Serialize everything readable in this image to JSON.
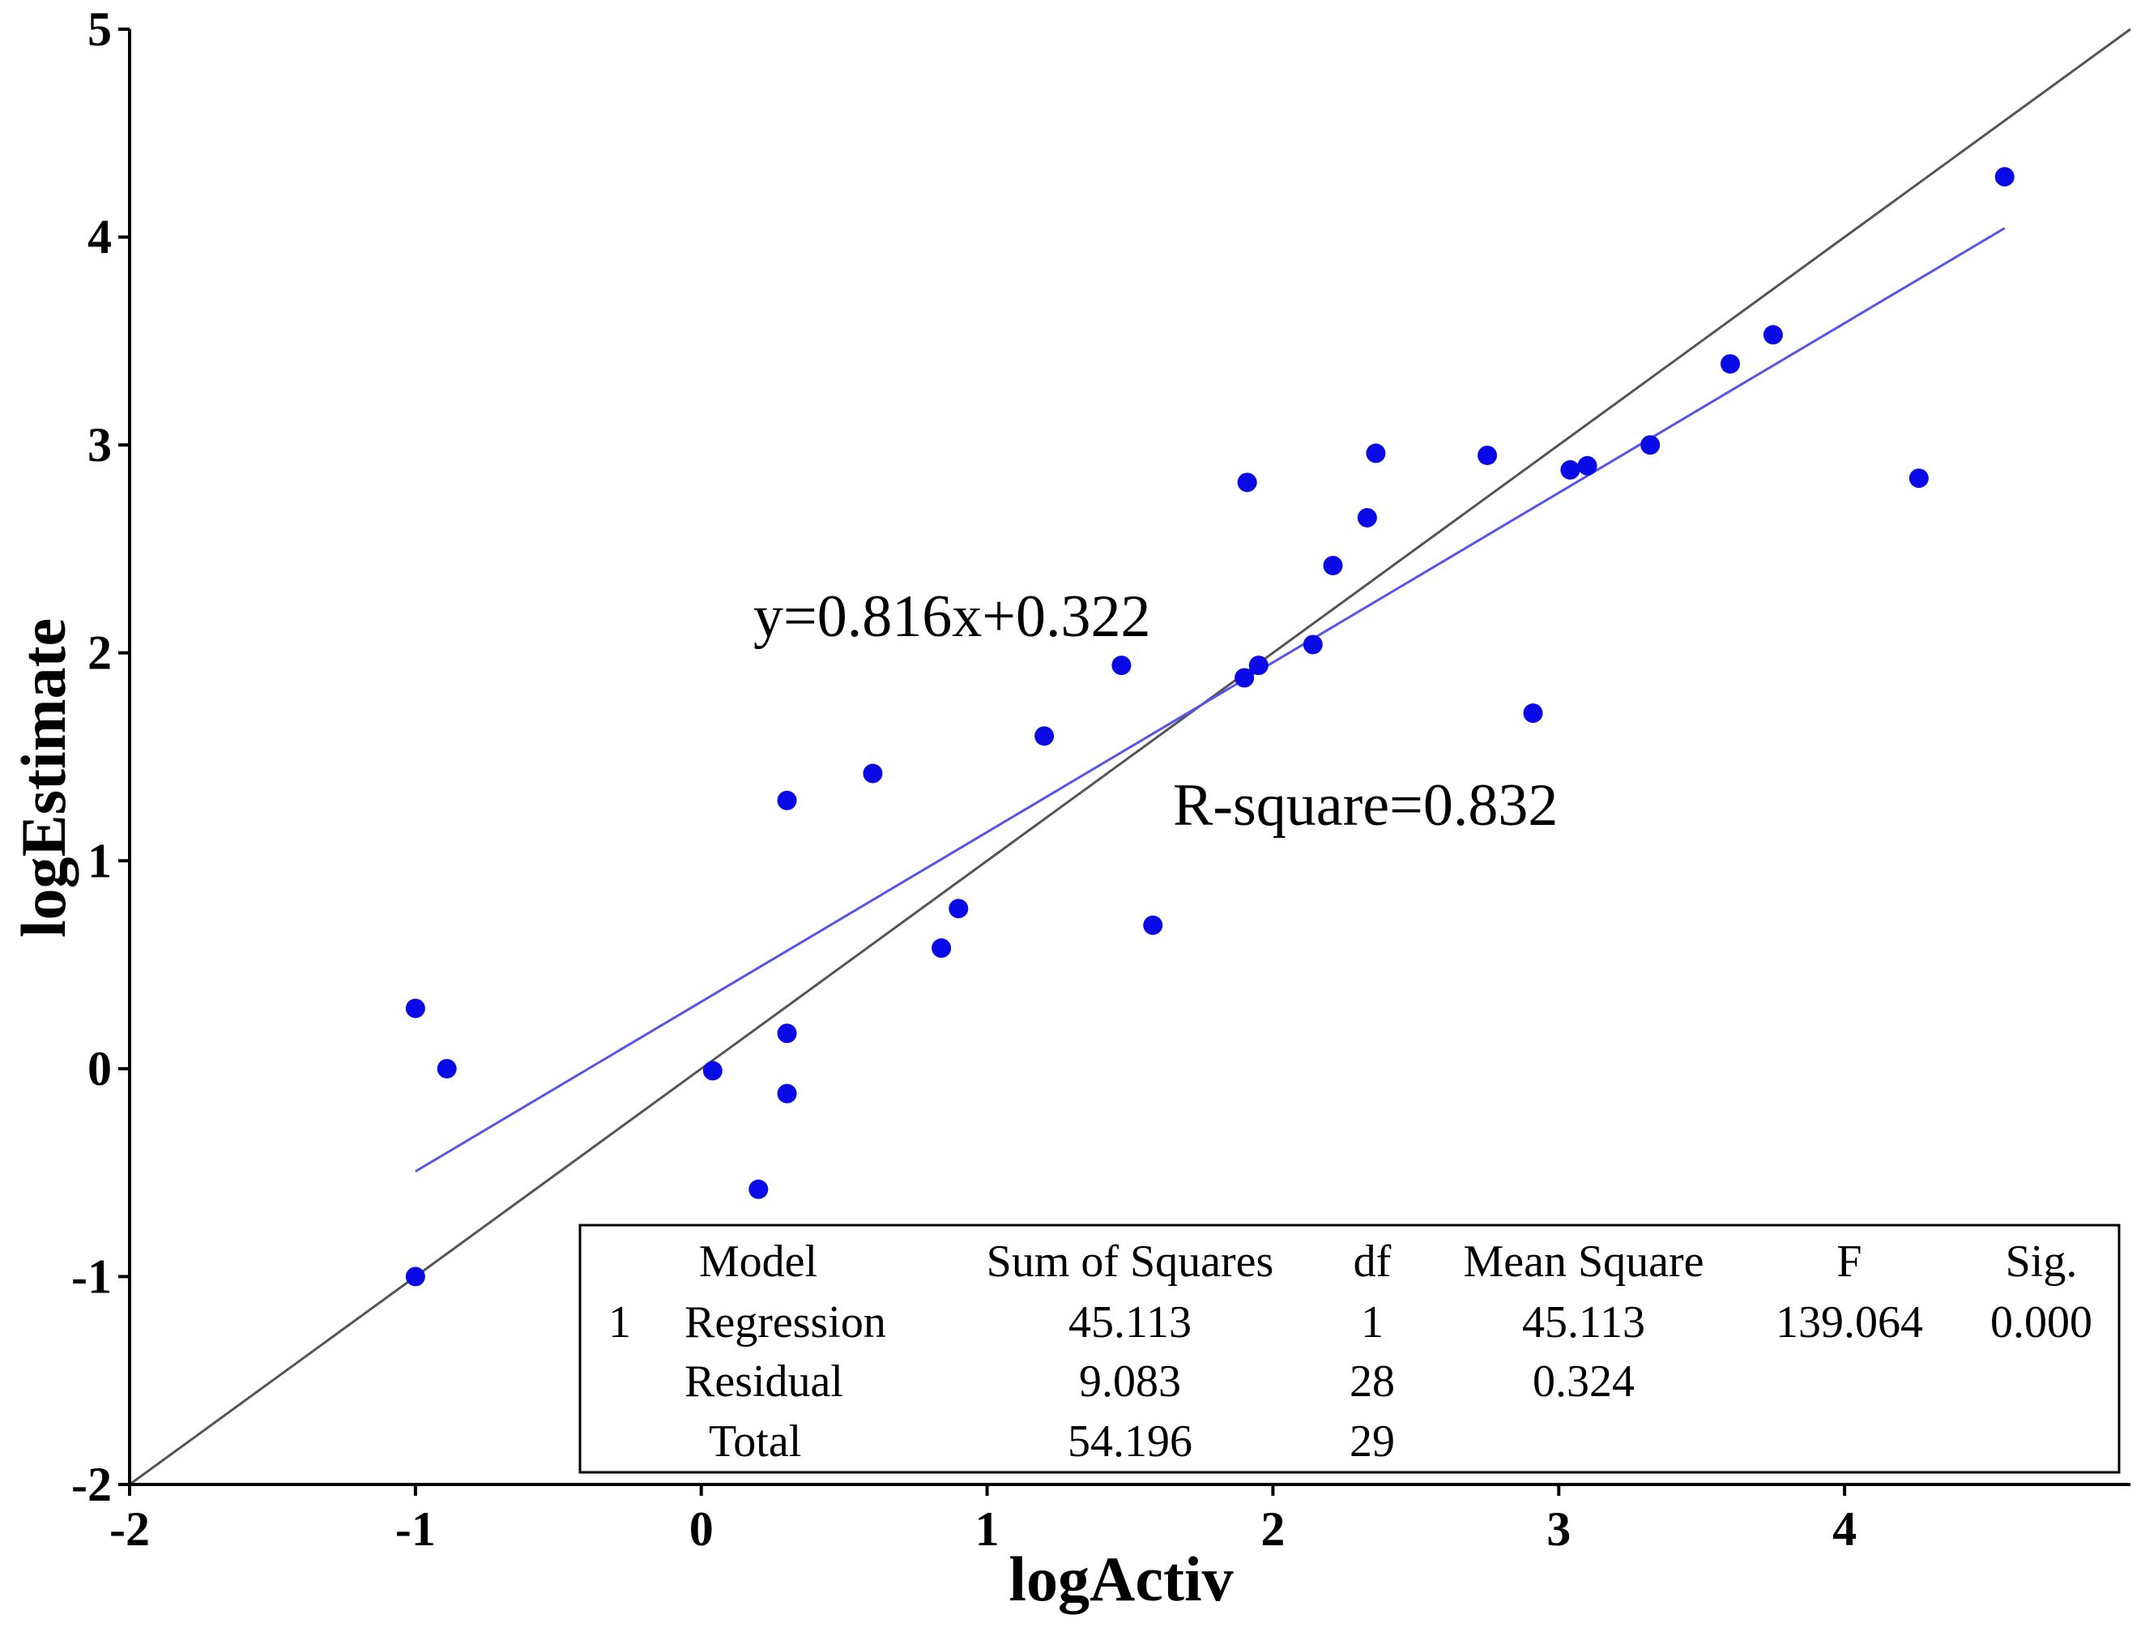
{
  "chart_data": {
    "type": "scatter",
    "xlabel": "logActiv",
    "ylabel": "logEstimate",
    "xlim": [
      -2,
      5
    ],
    "ylim": [
      -2,
      5
    ],
    "x_ticks": [
      "-2",
      "-1",
      "0",
      "1",
      "2",
      "3",
      "4"
    ],
    "y_ticks": [
      "-2",
      "-1",
      "0",
      "1",
      "2",
      "3",
      "4",
      "5"
    ],
    "grid": false,
    "colors": {
      "points": "#0a0ae6",
      "fit_line": "#5555ee",
      "identity_line": "#555555"
    },
    "points": [
      {
        "x": -1.0,
        "y": 0.29
      },
      {
        "x": -0.89,
        "y": 0.0
      },
      {
        "x": -1.0,
        "y": -1.0
      },
      {
        "x": 0.04,
        "y": -0.01
      },
      {
        "x": 0.2,
        "y": -0.58
      },
      {
        "x": 0.3,
        "y": 0.17
      },
      {
        "x": 0.3,
        "y": -0.12
      },
      {
        "x": 0.3,
        "y": 1.29
      },
      {
        "x": 0.6,
        "y": 1.42
      },
      {
        "x": 0.84,
        "y": 0.58
      },
      {
        "x": 0.9,
        "y": 0.77
      },
      {
        "x": 1.2,
        "y": 1.6
      },
      {
        "x": 1.47,
        "y": 1.94
      },
      {
        "x": 1.58,
        "y": 0.69
      },
      {
        "x": 1.9,
        "y": 1.88
      },
      {
        "x": 1.95,
        "y": 1.94
      },
      {
        "x": 1.91,
        "y": 2.82
      },
      {
        "x": 2.14,
        "y": 2.04
      },
      {
        "x": 2.21,
        "y": 2.42
      },
      {
        "x": 2.33,
        "y": 2.65
      },
      {
        "x": 2.36,
        "y": 2.96
      },
      {
        "x": 2.75,
        "y": 2.95
      },
      {
        "x": 2.91,
        "y": 1.71
      },
      {
        "x": 3.04,
        "y": 2.88
      },
      {
        "x": 3.1,
        "y": 2.9
      },
      {
        "x": 3.32,
        "y": 3.0
      },
      {
        "x": 3.6,
        "y": 3.39
      },
      {
        "x": 3.75,
        "y": 3.53
      },
      {
        "x": 4.26,
        "y": 2.84
      },
      {
        "x": 4.56,
        "y": 4.29
      }
    ],
    "fit_line": {
      "slope": 0.816,
      "intercept": 0.322,
      "x_range": [
        -1,
        4.56
      ]
    },
    "identity_line": {
      "slope": 1,
      "intercept": 0,
      "x_range": [
        -2,
        5
      ]
    },
    "annotations": {
      "equation": "y=0.816x+0.322",
      "r_square": "R-square=0.832"
    },
    "anova_table": {
      "headers": [
        "Model",
        "Sum of Squares",
        "df",
        "Mean Square",
        "F",
        "Sig."
      ],
      "model_number": "1",
      "rows": [
        {
          "model": "Regression",
          "ss": "45.113",
          "df": "1",
          "ms": "45.113",
          "f": "139.064",
          "sig": "0.000"
        },
        {
          "model": "Residual",
          "ss": "9.083",
          "df": "28",
          "ms": "0.324",
          "f": "",
          "sig": ""
        },
        {
          "model": "Total",
          "ss": "54.196",
          "df": "29",
          "ms": "",
          "f": "",
          "sig": ""
        }
      ]
    }
  }
}
